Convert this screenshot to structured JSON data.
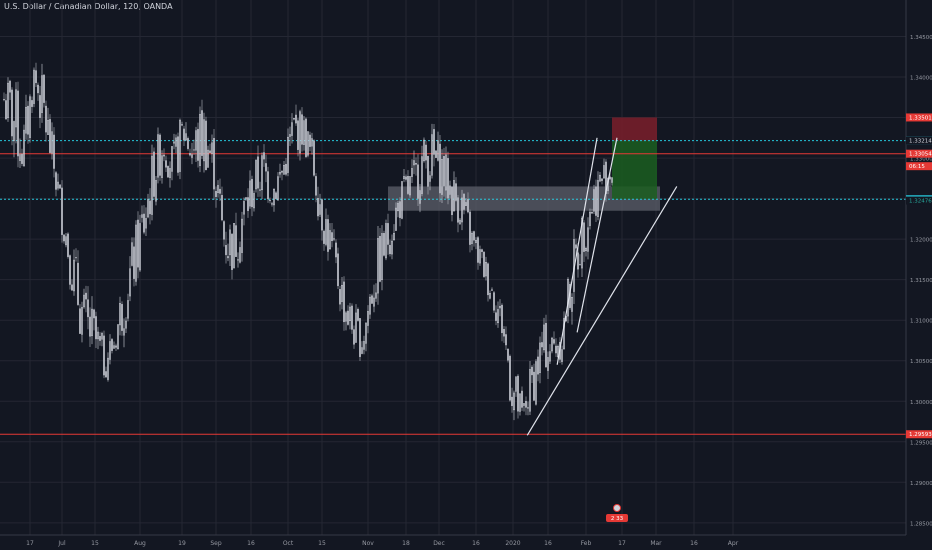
{
  "header": {
    "title": "U.S. Dollar / Canadian Dollar, 120, OANDA"
  },
  "colors": {
    "background": "#131722",
    "grid": "#242733",
    "text": "#9598a1",
    "candle_up": "#d1d4dc",
    "candle_down": "#b2b5be",
    "cyan_line": "#26c6da",
    "red_line": "#e53935",
    "zone": "#5d606b",
    "stop": "#7b1f2a",
    "target": "#1b5e20"
  },
  "chart_data": {
    "type": "candlestick",
    "ylim": [
      1.2835,
      1.3495
    ],
    "y_ticks": [
      1.345,
      1.34,
      1.335,
      1.33,
      1.325,
      1.32,
      1.315,
      1.31,
      1.305,
      1.3,
      1.295,
      1.29,
      1.285
    ],
    "y_tick_labels": [
      "1.34500",
      "1.34000",
      "1.33500",
      "1.33000",
      "1.32500",
      "1.32000",
      "1.31500",
      "1.31000",
      "1.30500",
      "1.30000",
      "1.29500",
      "1.29000",
      "1.28500"
    ],
    "x_ticks": [
      "17",
      "Jul",
      "15",
      "Aug",
      "19",
      "Sep",
      "16",
      "Oct",
      "15",
      "Nov",
      "18",
      "Dec",
      "16",
      "2020",
      "16",
      "Feb",
      "17",
      "Mar",
      "16",
      "Apr"
    ],
    "price_path": [
      [
        1.333,
        1.3415
      ],
      [
        1.3285,
        1.3408
      ],
      [
        1.3255,
        1.3365
      ],
      [
        1.3375,
        1.343
      ],
      [
        1.3305,
        1.341
      ],
      [
        1.3255,
        1.3325
      ],
      [
        1.3185,
        1.325
      ],
      [
        1.3105,
        1.3205
      ],
      [
        1.3045,
        1.315
      ],
      [
        1.3035,
        1.3125
      ],
      [
        1.3015,
        1.3085
      ],
      [
        1.3045,
        1.3095
      ],
      [
        1.3075,
        1.3175
      ],
      [
        1.3125,
        1.3215
      ],
      [
        1.3165,
        1.3275
      ],
      [
        1.3235,
        1.3325
      ],
      [
        1.3285,
        1.3355
      ],
      [
        1.325,
        1.3325
      ],
      [
        1.3295,
        1.3375
      ],
      [
        1.3255,
        1.336
      ],
      [
        1.3275,
        1.3385
      ],
      [
        1.3255,
        1.3335
      ],
      [
        1.3155,
        1.3255
      ],
      [
        1.3145,
        1.3235
      ],
      [
        1.3185,
        1.3275
      ],
      [
        1.3225,
        1.3305
      ],
      [
        1.3245,
        1.3325
      ],
      [
        1.3225,
        1.3295
      ],
      [
        1.3255,
        1.3315
      ],
      [
        1.3295,
        1.3375
      ],
      [
        1.3305,
        1.3365
      ],
      [
        1.3255,
        1.3335
      ],
      [
        1.3185,
        1.3275
      ],
      [
        1.3145,
        1.3215
      ],
      [
        1.3085,
        1.3165
      ],
      [
        1.3055,
        1.3125
      ],
      [
        1.3045,
        1.3105
      ],
      [
        1.3095,
        1.3195
      ],
      [
        1.3145,
        1.3225
      ],
      [
        1.3185,
        1.3255
      ],
      [
        1.3225,
        1.3285
      ],
      [
        1.3225,
        1.3305
      ],
      [
        1.3255,
        1.3335
      ],
      [
        1.3255,
        1.3345
      ],
      [
        1.3245,
        1.3325
      ],
      [
        1.3215,
        1.3295
      ],
      [
        1.3205,
        1.3275
      ],
      [
        1.3165,
        1.3225
      ],
      [
        1.3145,
        1.3195
      ],
      [
        1.3105,
        1.3165
      ],
      [
        1.3065,
        1.3125
      ],
      [
        1.2965,
        1.3065
      ],
      [
        1.2955,
        1.3005
      ],
      [
        1.2985,
        1.3065
      ],
      [
        1.3025,
        1.3105
      ],
      [
        1.3035,
        1.3095
      ],
      [
        1.3045,
        1.3115
      ],
      [
        1.3105,
        1.3205
      ],
      [
        1.3165,
        1.3245
      ],
      [
        1.3205,
        1.3285
      ],
      [
        1.3245,
        1.3305
      ],
      [
        1.3255,
        1.3315
      ]
    ],
    "horizontal_levels": [
      {
        "value": 1.33215,
        "color": "cyan"
      },
      {
        "value": 1.32492,
        "color": "cyan"
      },
      {
        "value": 1.33054,
        "color": "red"
      },
      {
        "value": 1.29593,
        "color": "red"
      }
    ],
    "price_labels": [
      {
        "value": 1.33501,
        "text": "1.33501",
        "bg": "#e53935",
        "fg": "#ffffff"
      },
      {
        "value": 1.33215,
        "text": "1.33215",
        "bg": "#26c6da",
        "fg": "#ffffff"
      },
      {
        "value": 1.33214,
        "text": "1.33214",
        "bg": "#131722",
        "fg": "#d1d4dc"
      },
      {
        "value": 1.33054,
        "text": "1.33054",
        "bg": "#e53935",
        "fg": "#ffffff"
      },
      {
        "value": 1.329,
        "text": "06:15",
        "bg": "#e53935",
        "fg": "#ffffff"
      },
      {
        "value": 1.32492,
        "text": "1.32492",
        "bg": "#26c6da",
        "fg": "#ffffff"
      },
      {
        "value": 1.32476,
        "text": "1.32476",
        "bg": "#131722",
        "fg": "#26a69a"
      },
      {
        "value": 1.29593,
        "text": "1.29593",
        "bg": "#e53935",
        "fg": "#ffffff"
      }
    ],
    "zone": {
      "y_top": 1.3265,
      "y_bottom": 1.3235
    },
    "position": {
      "entry": 1.33215,
      "stop": 1.33501,
      "target": 1.32492
    },
    "trendlines": [
      {
        "p1_idx": 52.5,
        "p1_val": 1.2958,
        "p2_idx": 67.5,
        "p2_val": 1.3265
      },
      {
        "p1_idx": 55.5,
        "p1_val": 1.3045,
        "p2_idx": 59.5,
        "p2_val": 1.3325
      },
      {
        "p1_idx": 57.5,
        "p1_val": 1.3085,
        "p2_idx": 61.5,
        "p2_val": 1.3325
      }
    ],
    "badge": {
      "text": "2 33"
    }
  }
}
